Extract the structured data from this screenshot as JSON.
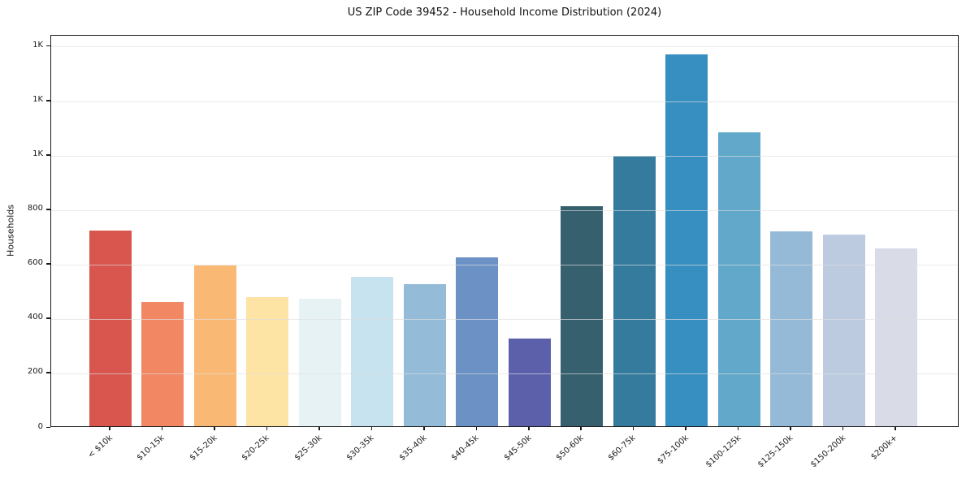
{
  "title": "US ZIP Code 39452 - Household Income Distribution (2024)",
  "chart_data": {
    "type": "bar",
    "title": "US ZIP Code 39452 - Household Income Distribution (2024)",
    "xlabel": "",
    "ylabel": "Households",
    "legend": "none",
    "grid": "horizontal",
    "ylim": [
      0,
      1440
    ],
    "yticks": [
      {
        "value": 0,
        "label": "0"
      },
      {
        "value": 200,
        "label": "200"
      },
      {
        "value": 400,
        "label": "400"
      },
      {
        "value": 600,
        "label": "600"
      },
      {
        "value": 800,
        "label": "800"
      },
      {
        "value": 1000,
        "label": "1K"
      },
      {
        "value": 1200,
        "label": "1K"
      },
      {
        "value": 1400,
        "label": "1K"
      }
    ],
    "categories": [
      "< $10k",
      "$10-15k",
      "$15-20k",
      "$20-25k",
      "$25-30k",
      "$30-35k",
      "$35-40k",
      "$40-45k",
      "$45-50k",
      "$50-60k",
      "$60-75k",
      "$75-100k",
      "$100-125k",
      "$125-150k",
      "$150-200k",
      "$200k+"
    ],
    "values": [
      718,
      455,
      590,
      475,
      467,
      549,
      522,
      620,
      322,
      808,
      993,
      1365,
      1078,
      716,
      705,
      652
    ],
    "bar_colors": [
      "#d8564d",
      "#f28764",
      "#f9b873",
      "#fde3a4",
      "#e7f2f5",
      "#c6e3ef",
      "#94bbd8",
      "#6b91c5",
      "#5c60ab",
      "#37606f",
      "#347b9e",
      "#378fc1",
      "#61a8ca",
      "#95bad8",
      "#bdcbe1",
      "#d9dbe7"
    ]
  }
}
